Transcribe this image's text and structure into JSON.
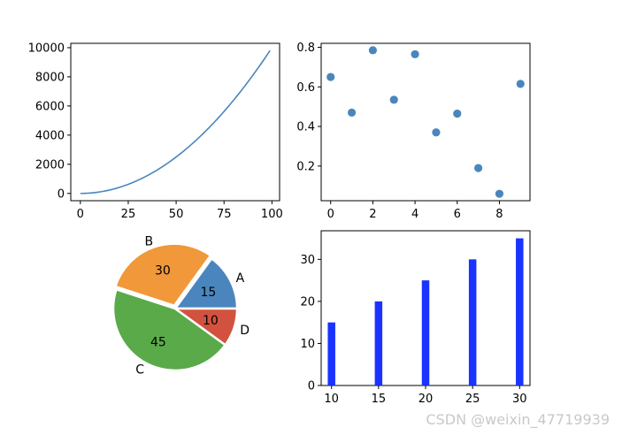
{
  "watermark": "CSDN @weixin_47719939",
  "colors": {
    "blue": "#4a86bd",
    "orange": "#f0983a",
    "green": "#5aaa4a",
    "red": "#d2523f",
    "barblue": "#1a33ff"
  },
  "chart_data": [
    {
      "type": "line",
      "x_range": [
        0,
        99
      ],
      "formula": "y = x^2",
      "x_ticks": [
        "0",
        "25",
        "50",
        "75",
        "100"
      ],
      "y_ticks": [
        "0",
        "2000",
        "4000",
        "6000",
        "8000",
        "10000"
      ],
      "xlim": [
        -5,
        104
      ],
      "ylim": [
        -500,
        10300
      ],
      "color": "#4a86bd"
    },
    {
      "type": "scatter",
      "x": [
        0,
        1,
        2,
        3,
        4,
        5,
        6,
        7,
        8,
        9
      ],
      "y": [
        0.65,
        0.47,
        0.785,
        0.535,
        0.765,
        0.37,
        0.465,
        0.19,
        0.06,
        0.615
      ],
      "x_ticks": [
        "0",
        "2",
        "4",
        "6",
        "8"
      ],
      "y_ticks": [
        "0.2",
        "0.4",
        "0.6",
        "0.8"
      ],
      "xlim": [
        -0.45,
        9.45
      ],
      "ylim": [
        0.025,
        0.82
      ],
      "color": "#4a86bd"
    },
    {
      "type": "pie",
      "labels": [
        "A",
        "B",
        "C",
        "D"
      ],
      "values": [
        15,
        30,
        45,
        10
      ],
      "value_labels": [
        "15",
        "30",
        "45",
        "10"
      ],
      "explode": [
        0,
        0.05,
        0,
        0
      ],
      "colors": [
        "#4a86bd",
        "#f0983a",
        "#5aaa4a",
        "#d2523f"
      ]
    },
    {
      "type": "bar",
      "x": [
        10,
        15,
        20,
        25,
        30
      ],
      "values": [
        15,
        20,
        25,
        30,
        35
      ],
      "x_ticks": [
        "10",
        "15",
        "20",
        "25",
        "30"
      ],
      "y_ticks": [
        "0",
        "10",
        "20",
        "30"
      ],
      "xlim": [
        8.9,
        31.1
      ],
      "ylim": [
        0,
        36.8
      ],
      "color": "#1a33ff"
    }
  ]
}
